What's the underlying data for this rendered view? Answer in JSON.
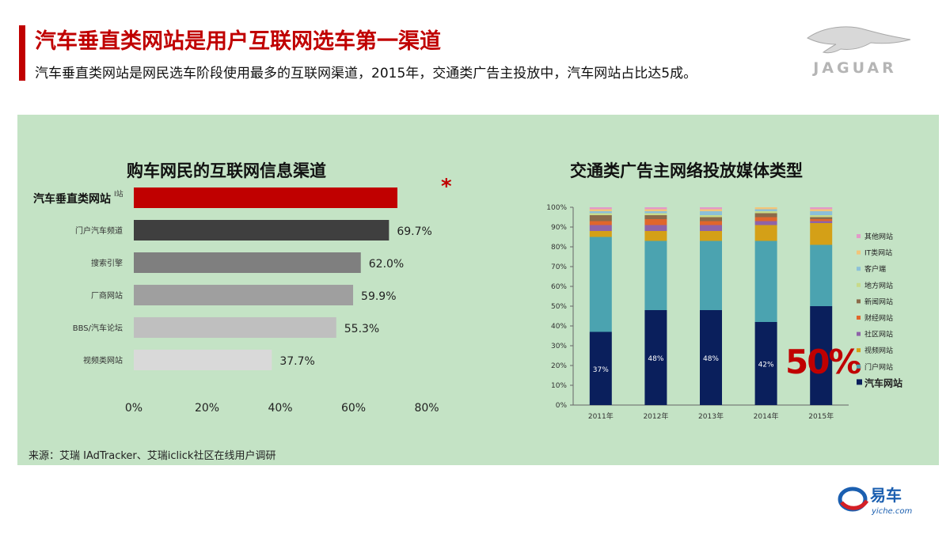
{
  "header": {
    "title": "汽车垂直类网站是用户互联网选车第一渠道",
    "subtitle": "汽车垂直类网站是网民选车阶段使用最多的互联网渠道，2015年，交通类广告主投放中，汽车网站占比达5成。",
    "brand_logo_text": "JAGUAR"
  },
  "footer": {
    "source": "来源：艾瑞 IAdTracker、艾瑞iclick社区在线用户调研",
    "logo_cn": "易车",
    "logo_en": "yiche.com"
  },
  "colors": {
    "title_red": "#c00000",
    "panel_bg": "#c4e3c5"
  },
  "chart_data": [
    {
      "type": "bar",
      "orientation": "horizontal",
      "title": "购车网民的互联网信息渠道",
      "categories": [
        "汽车垂直类网站",
        "门户汽车频道",
        "搜索引擎",
        "厂商网站",
        "BBS/汽车论坛",
        "视频类网站"
      ],
      "values": [
        72.0,
        69.7,
        62.0,
        59.9,
        55.3,
        37.7
      ],
      "data_labels": [
        "",
        "69.7%",
        "62.0%",
        "59.9%",
        "55.3%",
        "37.7%"
      ],
      "bar_colors": [
        "#c00000",
        "#3f3f3f",
        "#7f7f7f",
        "#9f9f9f",
        "#bfbfbf",
        "#d9d9d9"
      ],
      "highlight_label": "汽车垂直类网站",
      "highlight_label_small": "I站",
      "highlight_mark": "*",
      "xlim": [
        0,
        80
      ],
      "xticks": [
        "0%",
        "20%",
        "40%",
        "60%",
        "80%"
      ]
    },
    {
      "type": "bar",
      "stacked": true,
      "title": "交通类广告主网络投放媒体类型",
      "categories": [
        "2011年",
        "2012年",
        "2013年",
        "2014年",
        "2015年"
      ],
      "ylim": [
        0,
        100
      ],
      "yticks": [
        "0%",
        "10%",
        "20%",
        "30%",
        "40%",
        "50%",
        "60%",
        "70%",
        "80%",
        "90%",
        "100%"
      ],
      "series": [
        {
          "name": "汽车网站",
          "color": "#0a1f5c",
          "values": [
            37,
            48,
            48,
            42,
            50
          ],
          "labels": [
            "37%",
            "48%",
            "48%",
            "42%",
            ""
          ]
        },
        {
          "name": "门户网站",
          "color": "#4ba3b0",
          "values": [
            48,
            35,
            35,
            41,
            31
          ]
        },
        {
          "name": "视频网站",
          "color": "#d4a017",
          "values": [
            3,
            5,
            5,
            8,
            11
          ]
        },
        {
          "name": "社区网站",
          "color": "#8e63a8",
          "values": [
            3,
            3,
            3,
            2,
            1
          ]
        },
        {
          "name": "财经网站",
          "color": "#e0662c",
          "values": [
            2,
            3,
            2,
            2,
            1
          ]
        },
        {
          "name": "新闻网站",
          "color": "#8b6b4a",
          "values": [
            3,
            2,
            2,
            2,
            1
          ]
        },
        {
          "name": "地方网站",
          "color": "#c8da8a",
          "values": [
            1,
            1,
            1,
            1,
            1
          ]
        },
        {
          "name": "客户端",
          "color": "#8cc0d8",
          "values": [
            1,
            1,
            2,
            1,
            2
          ]
        },
        {
          "name": "IT类网站",
          "color": "#f2c57a",
          "values": [
            1,
            1,
            1,
            1,
            1
          ]
        },
        {
          "name": "其他网站",
          "color": "#e29ac8",
          "values": [
            1,
            1,
            1,
            0,
            1
          ]
        }
      ],
      "legend_order": [
        "其他网站",
        "IT类网站",
        "客户端",
        "地方网站",
        "新闻网站",
        "财经网站",
        "社区网站",
        "视频网站",
        "门户网站",
        "汽车网站"
      ],
      "legend_position": "right",
      "callout": "50%"
    }
  ]
}
